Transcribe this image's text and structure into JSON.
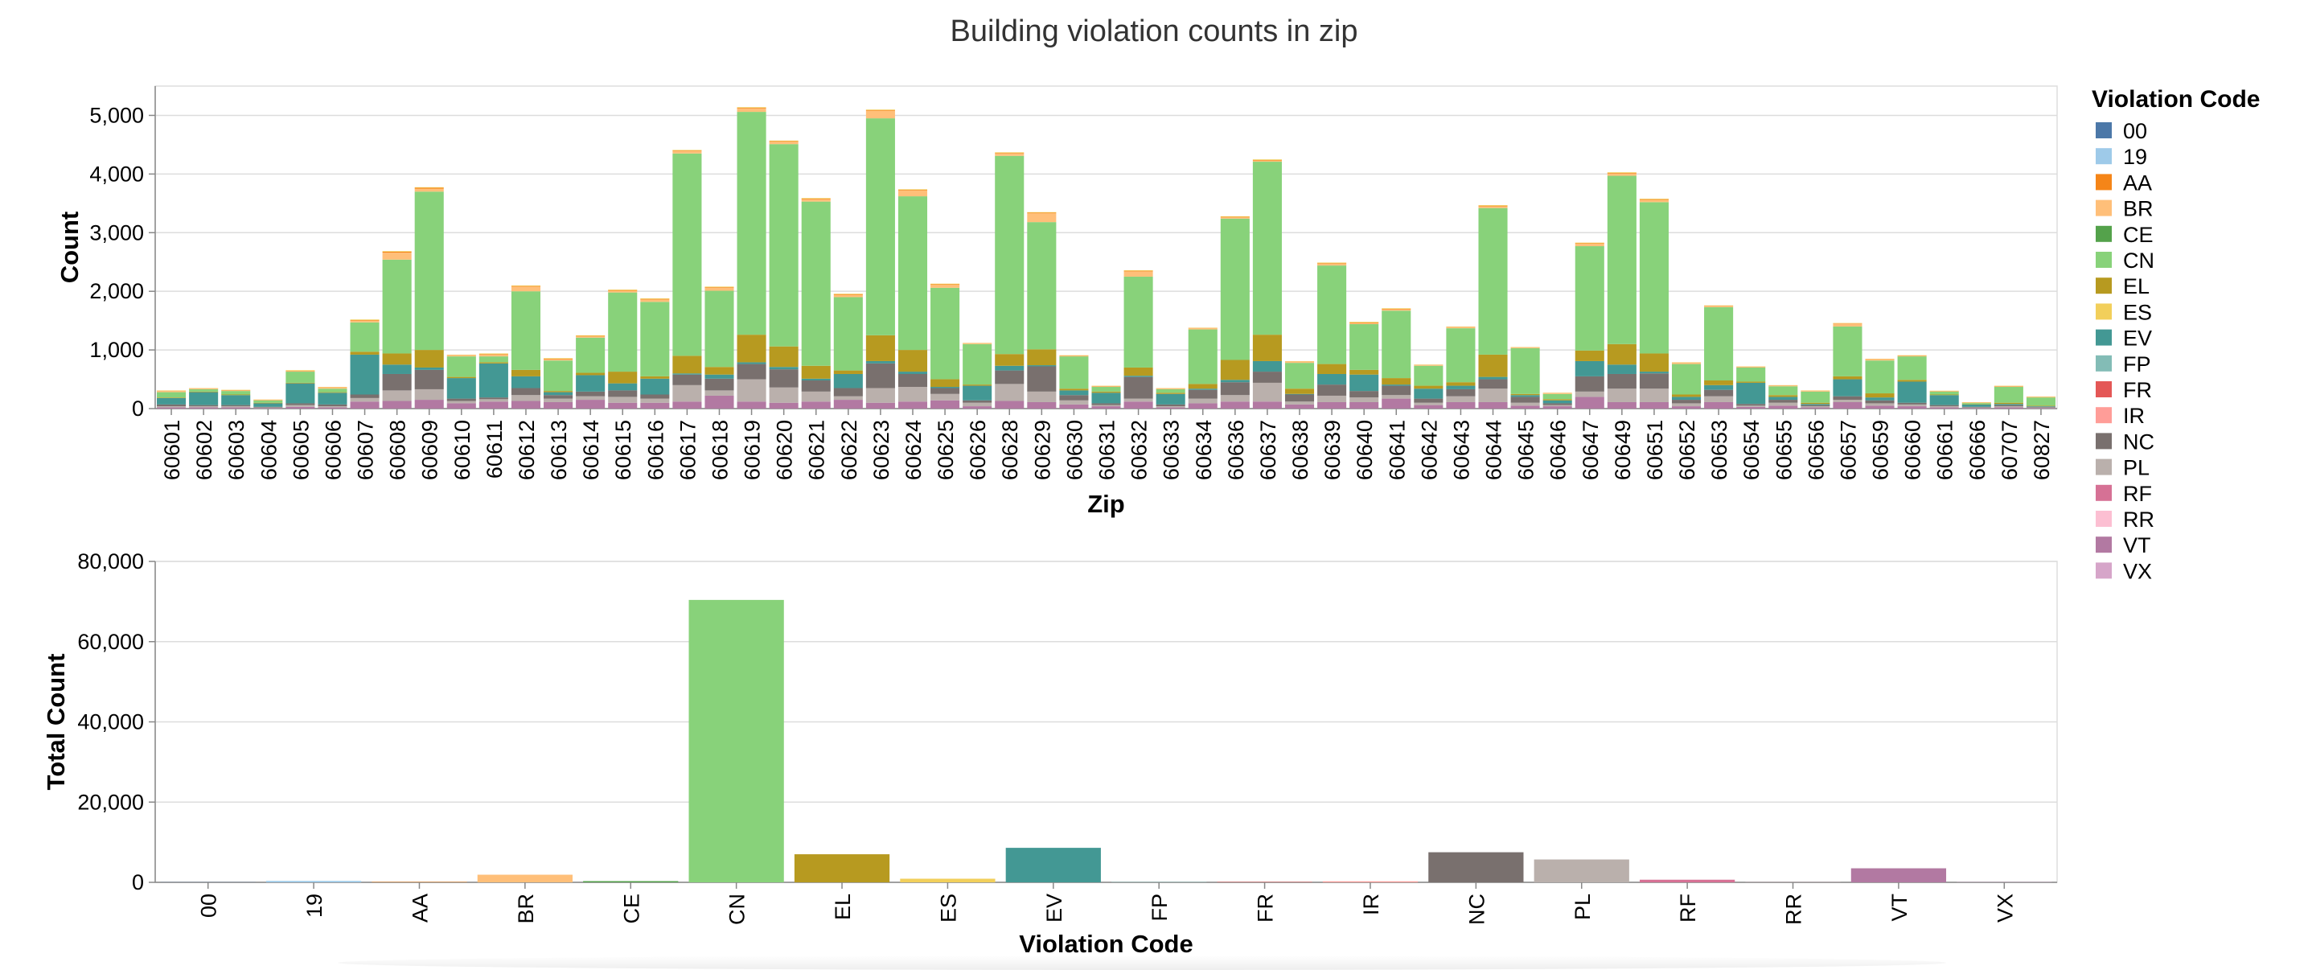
{
  "chart_data": [
    {
      "type": "bar",
      "stacked": true,
      "title": "Building violation counts in zip",
      "xlabel": "Zip",
      "ylabel": "Count",
      "ylim": [
        0,
        5500
      ],
      "yticks": [
        "0",
        "1,000",
        "2,000",
        "3,000",
        "4,000",
        "5,000"
      ],
      "grid": true,
      "categories": [
        "60601",
        "60602",
        "60603",
        "60604",
        "60605",
        "60606",
        "60607",
        "60608",
        "60609",
        "60610",
        "60611",
        "60612",
        "60613",
        "60614",
        "60615",
        "60616",
        "60617",
        "60618",
        "60619",
        "60620",
        "60621",
        "60622",
        "60623",
        "60624",
        "60625",
        "60626",
        "60628",
        "60629",
        "60630",
        "60631",
        "60632",
        "60633",
        "60634",
        "60636",
        "60637",
        "60638",
        "60639",
        "60640",
        "60641",
        "60642",
        "60643",
        "60644",
        "60645",
        "60646",
        "60647",
        "60649",
        "60651",
        "60652",
        "60653",
        "60654",
        "60655",
        "60656",
        "60657",
        "60659",
        "60660",
        "60661",
        "60666",
        "60707",
        "60827"
      ],
      "series": [
        {
          "name": "VT",
          "values": [
            20,
            20,
            20,
            10,
            30,
            20,
            120,
            130,
            150,
            90,
            120,
            130,
            110,
            150,
            100,
            100,
            120,
            220,
            120,
            100,
            120,
            150,
            100,
            120,
            140,
            40,
            130,
            110,
            70,
            40,
            120,
            20,
            90,
            120,
            120,
            70,
            110,
            110,
            170,
            60,
            110,
            110,
            50,
            40,
            200,
            110,
            110,
            40,
            110,
            30,
            50,
            20,
            110,
            50,
            40,
            20,
            10,
            20,
            10
          ]
        },
        {
          "name": "PL",
          "values": [
            20,
            20,
            20,
            10,
            30,
            20,
            60,
            180,
            180,
            40,
            40,
            100,
            60,
            60,
            100,
            70,
            280,
            90,
            380,
            260,
            170,
            60,
            250,
            250,
            110,
            60,
            290,
            180,
            70,
            20,
            50,
            20,
            80,
            110,
            320,
            50,
            110,
            80,
            60,
            40,
            100,
            230,
            50,
            20,
            90,
            230,
            230,
            50,
            100,
            20,
            50,
            20,
            40,
            40,
            30,
            20,
            10,
            20,
            10
          ]
        },
        {
          "name": "NC",
          "values": [
            30,
            20,
            20,
            10,
            30,
            30,
            60,
            280,
            330,
            40,
            30,
            120,
            60,
            80,
            110,
            70,
            180,
            200,
            260,
            310,
            190,
            140,
            420,
            220,
            100,
            40,
            230,
            430,
            90,
            30,
            370,
            30,
            150,
            220,
            190,
            120,
            190,
            110,
            160,
            70,
            120,
            160,
            100,
            30,
            260,
            250,
            260,
            60,
            110,
            30,
            50,
            20,
            60,
            50,
            30,
            20,
            10,
            20,
            10
          ]
        },
        {
          "name": "EV",
          "values": [
            110,
            220,
            170,
            60,
            340,
            200,
            680,
            160,
            40,
            350,
            580,
            200,
            50,
            280,
            120,
            270,
            20,
            70,
            30,
            40,
            30,
            240,
            40,
            40,
            20,
            250,
            80,
            20,
            80,
            180,
            20,
            180,
            20,
            40,
            180,
            10,
            180,
            280,
            20,
            170,
            60,
            40,
            30,
            50,
            260,
            160,
            30,
            50,
            80,
            360,
            50,
            20,
            290,
            50,
            360,
            170,
            40,
            20,
            10
          ]
        },
        {
          "name": "EL",
          "values": [
            10,
            10,
            10,
            10,
            10,
            10,
            50,
            190,
            300,
            20,
            20,
            110,
            20,
            40,
            200,
            40,
            300,
            130,
            470,
            350,
            220,
            60,
            440,
            370,
            130,
            20,
            200,
            270,
            30,
            20,
            140,
            20,
            80,
            340,
            450,
            90,
            170,
            80,
            110,
            50,
            60,
            380,
            20,
            20,
            180,
            350,
            310,
            40,
            80,
            20,
            30,
            20,
            50,
            70,
            30,
            10,
            5,
            20,
            10
          ]
        },
        {
          "name": "CN",
          "values": [
            90,
            40,
            60,
            40,
            190,
            60,
            500,
            1600,
            2700,
            350,
            100,
            1340,
            520,
            600,
            1350,
            1270,
            3450,
            1300,
            3800,
            3450,
            2800,
            1250,
            3700,
            2620,
            1560,
            690,
            3380,
            2170,
            550,
            80,
            1550,
            60,
            930,
            2410,
            2950,
            440,
            1680,
            780,
            1150,
            340,
            920,
            2500,
            780,
            90,
            1780,
            2870,
            2580,
            520,
            1250,
            240,
            150,
            190,
            850,
            560,
            400,
            50,
            20,
            270,
            140
          ]
        },
        {
          "name": "BR",
          "values": [
            20,
            10,
            10,
            5,
            10,
            20,
            30,
            120,
            50,
            20,
            30,
            80,
            20,
            20,
            30,
            40,
            40,
            50,
            60,
            40,
            40,
            40,
            130,
            100,
            50,
            10,
            40,
            150,
            10,
            10,
            90,
            10,
            20,
            20,
            20,
            20,
            30,
            20,
            20,
            10,
            20,
            30,
            10,
            10,
            40,
            40,
            40,
            20,
            20,
            10,
            10,
            10,
            50,
            20,
            10,
            5,
            5,
            10,
            5
          ]
        },
        {
          "name": "AA",
          "values": [
            5,
            5,
            5,
            5,
            5,
            5,
            10,
            15,
            15,
            5,
            10,
            10,
            10,
            10,
            10,
            10,
            10,
            10,
            10,
            10,
            10,
            10,
            10,
            10,
            10,
            5,
            10,
            10,
            5,
            5,
            10,
            5,
            5,
            10,
            10,
            5,
            10,
            10,
            10,
            5,
            5,
            10,
            5,
            5,
            10,
            10,
            10,
            5,
            5,
            5,
            5,
            5,
            5,
            5,
            5,
            5,
            5,
            5,
            5
          ]
        },
        {
          "name": "ES",
          "values": [
            5,
            5,
            5,
            5,
            10,
            5,
            10,
            10,
            10,
            5,
            10,
            10,
            10,
            10,
            10,
            10,
            10,
            10,
            10,
            10,
            10,
            10,
            10,
            10,
            10,
            5,
            10,
            10,
            5,
            5,
            10,
            5,
            5,
            10,
            10,
            5,
            10,
            10,
            10,
            5,
            5,
            10,
            5,
            5,
            10,
            10,
            10,
            5,
            5,
            5,
            5,
            5,
            5,
            5,
            5,
            5,
            5,
            5,
            5
          ]
        }
      ],
      "legend": {
        "title": "Violation Code",
        "placement": "right",
        "items": [
          {
            "code": "00",
            "color": "#4c78a8"
          },
          {
            "code": "19",
            "color": "#9ecae9"
          },
          {
            "code": "AA",
            "color": "#f58518"
          },
          {
            "code": "BR",
            "color": "#ffbf79"
          },
          {
            "code": "CE",
            "color": "#54a24b"
          },
          {
            "code": "CN",
            "color": "#88d27a"
          },
          {
            "code": "EL",
            "color": "#b79a20"
          },
          {
            "code": "ES",
            "color": "#f2cf5b"
          },
          {
            "code": "EV",
            "color": "#439894"
          },
          {
            "code": "FP",
            "color": "#83bcb6"
          },
          {
            "code": "FR",
            "color": "#e45756"
          },
          {
            "code": "IR",
            "color": "#ff9d98"
          },
          {
            "code": "NC",
            "color": "#79706e"
          },
          {
            "code": "PL",
            "color": "#bab0ac"
          },
          {
            "code": "RF",
            "color": "#d67195"
          },
          {
            "code": "RR",
            "color": "#fcbfd2"
          },
          {
            "code": "VT",
            "color": "#b279a2"
          },
          {
            "code": "VX",
            "color": "#d6a5c9"
          }
        ]
      }
    },
    {
      "type": "bar",
      "xlabel": "Violation Code",
      "ylabel": "Total Count",
      "ylim": [
        0,
        80000
      ],
      "yticks": [
        "0",
        "20,000",
        "40,000",
        "60,000",
        "80,000"
      ],
      "grid": true,
      "categories": [
        "00",
        "19",
        "AA",
        "BR",
        "CE",
        "CN",
        "EL",
        "ES",
        "EV",
        "FP",
        "FR",
        "IR",
        "NC",
        "PL",
        "RF",
        "RR",
        "VT",
        "VX"
      ],
      "values": [
        40,
        350,
        100,
        1900,
        300,
        70400,
        7000,
        900,
        8600,
        80,
        100,
        250,
        7500,
        5700,
        650,
        30,
        3500,
        50
      ]
    }
  ]
}
